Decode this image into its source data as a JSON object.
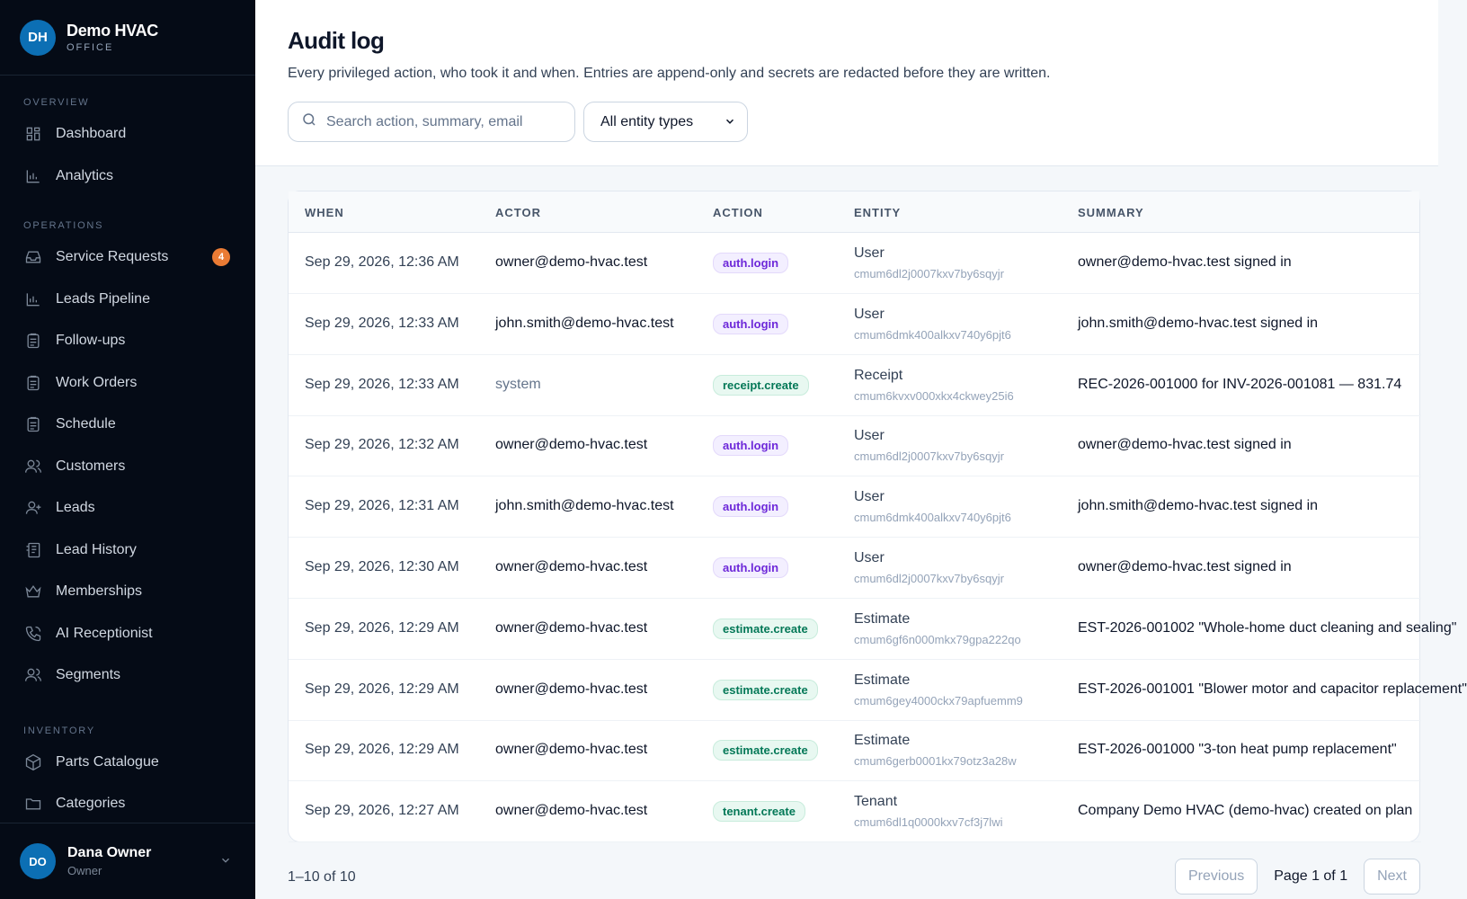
{
  "brand": {
    "initials": "DH",
    "name": "Demo HVAC",
    "sub": "OFFICE"
  },
  "sidebar": {
    "sections": [
      {
        "label": "OVERVIEW",
        "items": [
          {
            "label": "Dashboard",
            "icon": "grid-icon"
          },
          {
            "label": "Analytics",
            "icon": "bar-chart-icon"
          }
        ]
      },
      {
        "label": "OPERATIONS",
        "items": [
          {
            "label": "Service Requests",
            "icon": "inbox-icon",
            "badge": "4"
          },
          {
            "label": "Leads Pipeline",
            "icon": "bar-chart-icon"
          },
          {
            "label": "Follow-ups",
            "icon": "clipboard-icon"
          },
          {
            "label": "Work Orders",
            "icon": "clipboard-icon"
          },
          {
            "label": "Schedule",
            "icon": "clipboard-icon"
          },
          {
            "label": "Customers",
            "icon": "users-icon"
          },
          {
            "label": "Leads",
            "icon": "user-plus-icon"
          },
          {
            "label": "Lead History",
            "icon": "history-icon"
          },
          {
            "label": "Memberships",
            "icon": "crown-icon"
          },
          {
            "label": "AI Receptionist",
            "icon": "phone-icon"
          },
          {
            "label": "Segments",
            "icon": "users-icon"
          }
        ]
      },
      {
        "label": "INVENTORY",
        "items": [
          {
            "label": "Parts Catalogue",
            "icon": "box-icon"
          },
          {
            "label": "Categories",
            "icon": "folder-icon"
          }
        ]
      }
    ]
  },
  "user": {
    "initials": "DO",
    "name": "Dana Owner",
    "role": "Owner"
  },
  "page": {
    "title": "Audit log",
    "description": "Every privileged action, who took it and when. Entries are append-only and secrets are redacted before they are written.",
    "search_placeholder": "Search action, summary, email",
    "entity_filter": "All entity types"
  },
  "table": {
    "columns": [
      "WHEN",
      "ACTOR",
      "ACTION",
      "ENTITY",
      "SUMMARY"
    ],
    "rows": [
      {
        "when": "Sep 29, 2026, 12:36 AM",
        "actor": "owner@demo-hvac.test",
        "action": "auth.login",
        "entity": "User",
        "entity_id": "cmum6dl2j0007kxv7by6sqyjr",
        "summary": "owner@demo-hvac.test signed in"
      },
      {
        "when": "Sep 29, 2026, 12:33 AM",
        "actor": "john.smith@demo-hvac.test",
        "action": "auth.login",
        "entity": "User",
        "entity_id": "cmum6dmk400alkxv740y6pjt6",
        "summary": "john.smith@demo-hvac.test signed in"
      },
      {
        "when": "Sep 29, 2026, 12:33 AM",
        "actor": "system",
        "action": "receipt.create",
        "entity": "Receipt",
        "entity_id": "cmum6kvxv000xkx4ckwey25i6",
        "summary": "REC-2026-001000 for INV-2026-001081 — 831.74"
      },
      {
        "when": "Sep 29, 2026, 12:32 AM",
        "actor": "owner@demo-hvac.test",
        "action": "auth.login",
        "entity": "User",
        "entity_id": "cmum6dl2j0007kxv7by6sqyjr",
        "summary": "owner@demo-hvac.test signed in"
      },
      {
        "when": "Sep 29, 2026, 12:31 AM",
        "actor": "john.smith@demo-hvac.test",
        "action": "auth.login",
        "entity": "User",
        "entity_id": "cmum6dmk400alkxv740y6pjt6",
        "summary": "john.smith@demo-hvac.test signed in"
      },
      {
        "when": "Sep 29, 2026, 12:30 AM",
        "actor": "owner@demo-hvac.test",
        "action": "auth.login",
        "entity": "User",
        "entity_id": "cmum6dl2j0007kxv7by6sqyjr",
        "summary": "owner@demo-hvac.test signed in"
      },
      {
        "when": "Sep 29, 2026, 12:29 AM",
        "actor": "owner@demo-hvac.test",
        "action": "estimate.create",
        "entity": "Estimate",
        "entity_id": "cmum6gf6n000mkx79gpa222qo",
        "summary": "EST-2026-001002 \"Whole-home duct cleaning and sealing\""
      },
      {
        "when": "Sep 29, 2026, 12:29 AM",
        "actor": "owner@demo-hvac.test",
        "action": "estimate.create",
        "entity": "Estimate",
        "entity_id": "cmum6gey4000ckx79apfuemm9",
        "summary": "EST-2026-001001 \"Blower motor and capacitor replacement\""
      },
      {
        "when": "Sep 29, 2026, 12:29 AM",
        "actor": "owner@demo-hvac.test",
        "action": "estimate.create",
        "entity": "Estimate",
        "entity_id": "cmum6gerb0001kx79otz3a28w",
        "summary": "EST-2026-001000 \"3-ton heat pump replacement\""
      },
      {
        "when": "Sep 29, 2026, 12:27 AM",
        "actor": "owner@demo-hvac.test",
        "action": "tenant.create",
        "entity": "Tenant",
        "entity_id": "cmum6dl1q0000kxv7cf3j7lwi",
        "summary": "Company Demo HVAC (demo-hvac) created on plan"
      }
    ]
  },
  "pagination": {
    "count": "1–10 of 10",
    "previous": "Previous",
    "page": "Page 1 of 1",
    "next": "Next"
  },
  "colors": {
    "sidebar_bg": "#050b16",
    "brand_blue": "#0c6fb4",
    "badge_orange": "#ea7b34",
    "login_purple": "#6d28d9",
    "create_green": "#047857"
  }
}
